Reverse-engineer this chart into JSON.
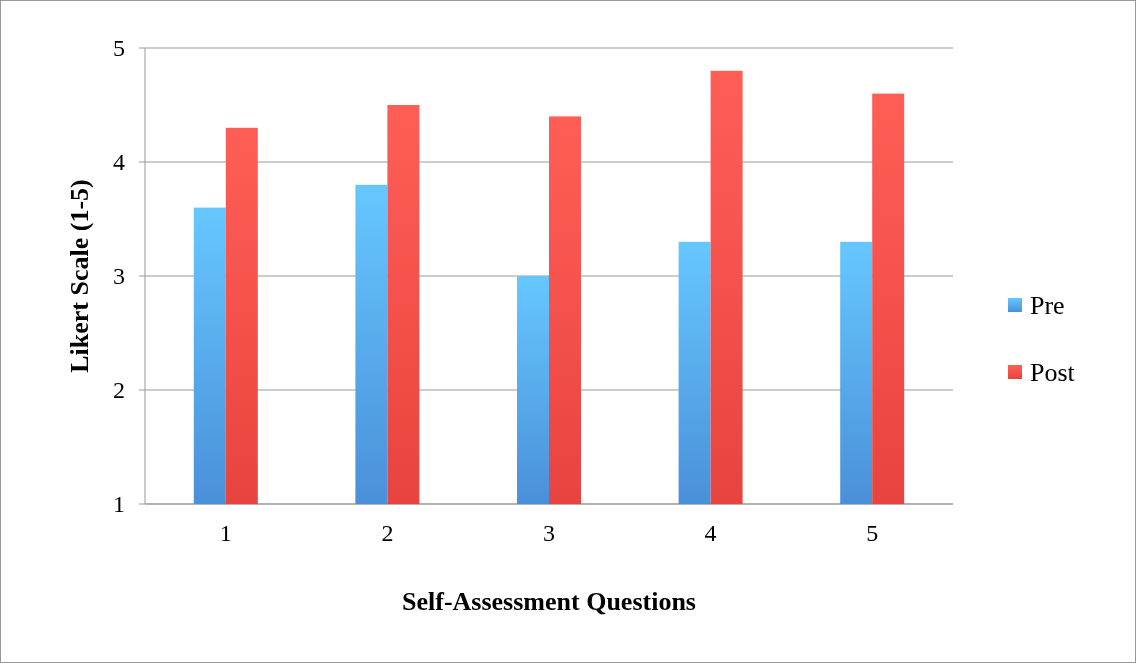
{
  "chart_data": {
    "type": "bar",
    "xlabel": "Self-Assessment Questions",
    "ylabel": "Likert Scale (1-5)",
    "categories": [
      "1",
      "2",
      "3",
      "4",
      "5"
    ],
    "series": [
      {
        "name": "Pre",
        "color": "#4a90d9",
        "values": [
          3.6,
          3.8,
          3.0,
          3.3,
          3.3
        ]
      },
      {
        "name": "Post",
        "color": "#e8443f",
        "values": [
          4.3,
          4.5,
          4.4,
          4.8,
          4.6
        ]
      }
    ],
    "ylim": [
      1,
      5
    ],
    "yticks": [
      1,
      2,
      3,
      4,
      5
    ],
    "grid": "y",
    "legend": "right"
  }
}
